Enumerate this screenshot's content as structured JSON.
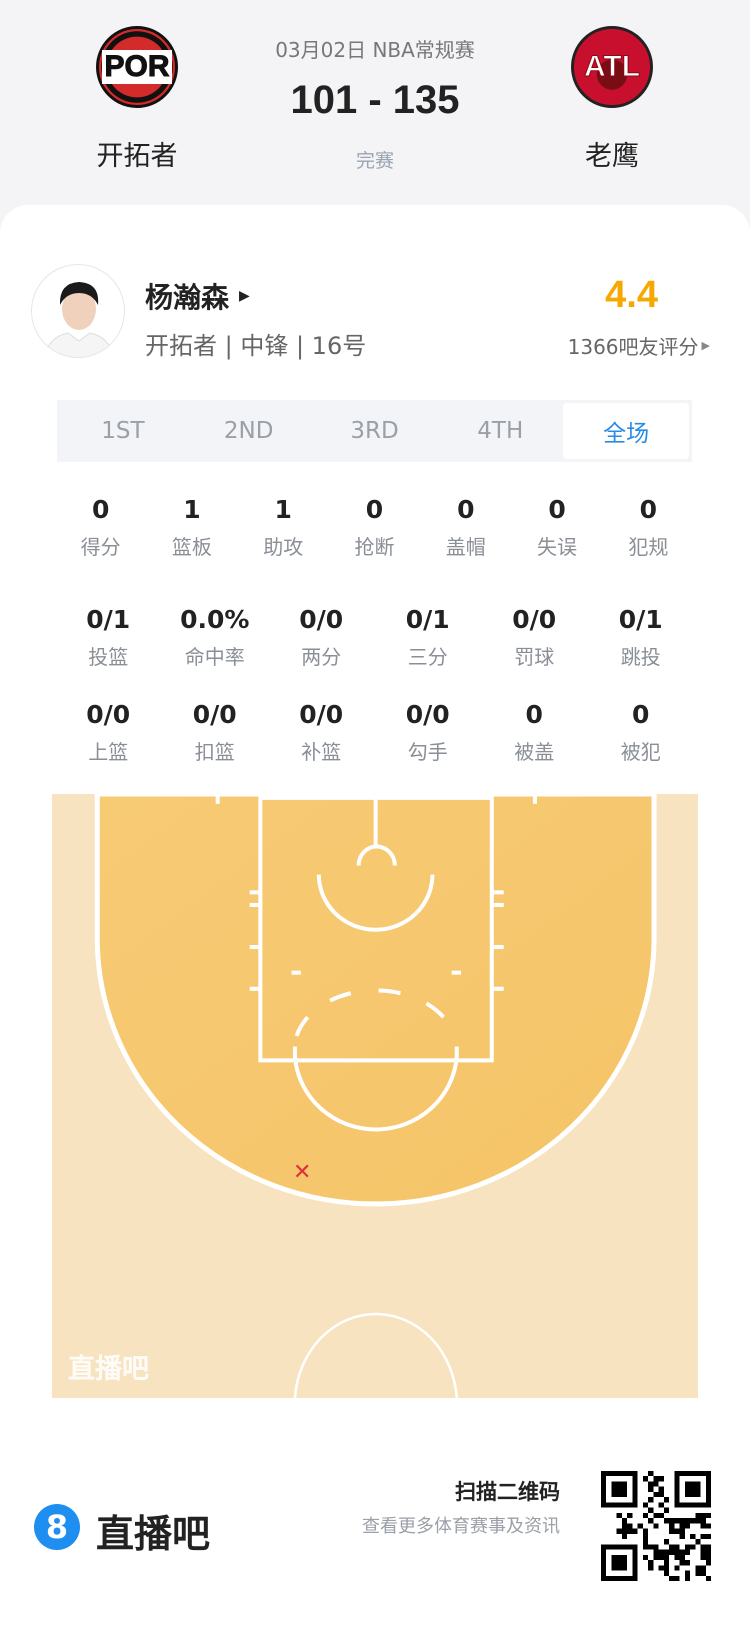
{
  "header": {
    "home": {
      "abbr": "POR",
      "name": "开拓者",
      "color": "#d32a2a"
    },
    "away": {
      "abbr": "ATL",
      "name": "老鹰",
      "color": "#c8102e"
    },
    "date_league": "03月02日 NBA常规赛",
    "score": "101 - 135",
    "status": "完赛"
  },
  "player": {
    "name": "杨瀚森",
    "info": "开拓者 | 中锋 | 16号",
    "rating": "4.4",
    "rating_count": "1366吧友评分",
    "rating_color": "#f5a800"
  },
  "tabs": [
    {
      "label": "1ST"
    },
    {
      "label": "2ND"
    },
    {
      "label": "3RD"
    },
    {
      "label": "4TH"
    },
    {
      "label": "全场",
      "active": true
    }
  ],
  "stats_row1": [
    {
      "value": "0",
      "label": "得分"
    },
    {
      "value": "1",
      "label": "篮板"
    },
    {
      "value": "1",
      "label": "助攻"
    },
    {
      "value": "0",
      "label": "抢断"
    },
    {
      "value": "0",
      "label": "盖帽"
    },
    {
      "value": "0",
      "label": "失误"
    },
    {
      "value": "0",
      "label": "犯规"
    }
  ],
  "stats_row2": [
    {
      "value": "0/1",
      "label": "投篮"
    },
    {
      "value": "0.0%",
      "label": "命中率"
    },
    {
      "value": "0/0",
      "label": "两分"
    },
    {
      "value": "0/1",
      "label": "三分"
    },
    {
      "value": "0/0",
      "label": "罚球"
    },
    {
      "value": "0/1",
      "label": "跳投"
    }
  ],
  "stats_row3": [
    {
      "value": "0/0",
      "label": "上篮"
    },
    {
      "value": "0/0",
      "label": "扣篮"
    },
    {
      "value": "0/0",
      "label": "补篮"
    },
    {
      "value": "0/0",
      "label": "勾手"
    },
    {
      "value": "0",
      "label": "被盖"
    },
    {
      "value": "0",
      "label": "被犯"
    }
  ],
  "shot_chart": {
    "shots": [
      {
        "result": "miss",
        "type": "three-pointer"
      }
    ],
    "miss_color": "#e0303a",
    "watermark": "直播吧"
  },
  "footer": {
    "brand": "直播吧",
    "brand_icon": "8",
    "qr_title": "扫描二维码",
    "qr_subtitle": "查看更多体育赛事及资讯"
  }
}
